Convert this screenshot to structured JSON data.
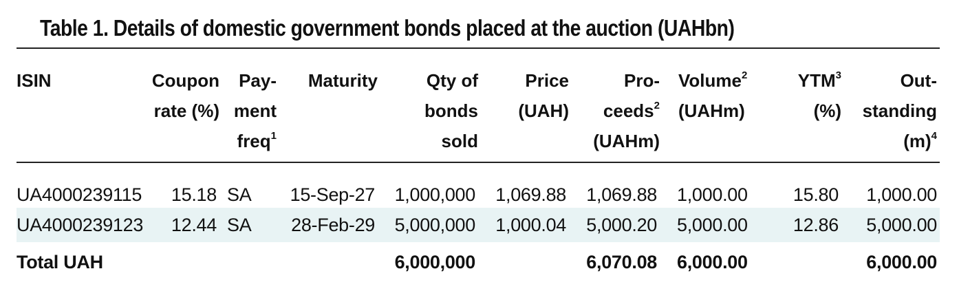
{
  "title": "Table 1. Details of domestic government bonds placed at the auction (UAHbn)",
  "headers": {
    "isin": [
      "ISIN"
    ],
    "coupon": [
      "Coupon",
      "rate (%)"
    ],
    "payment": [
      "Pay-",
      "ment",
      "freq",
      "1"
    ],
    "maturity": [
      "Maturity"
    ],
    "qty": [
      "Qty of",
      "bonds",
      "sold"
    ],
    "price": [
      "Price",
      "(UAH)"
    ],
    "proceeds": [
      "Pro-",
      "ceeds",
      "2",
      "(UAHm)"
    ],
    "volume": [
      "Volume",
      "2",
      "(UAHm)"
    ],
    "ytm": [
      "YTM",
      "3",
      "(%)"
    ],
    "outstanding": [
      "Out-",
      "standing",
      "(m)",
      "4"
    ]
  },
  "rows": [
    {
      "isin": "UA4000239115",
      "coupon": "15.18",
      "payment": "SA",
      "maturity": "15-Sep-27",
      "qty": "1,000,000",
      "price": "1,069.88",
      "proceeds": "1,069.88",
      "volume": "1,000.00",
      "ytm": "15.80",
      "outstanding": "1,000.00"
    },
    {
      "isin": "UA4000239123",
      "coupon": "12.44",
      "payment": "SA",
      "maturity": "28-Feb-29",
      "qty": "5,000,000",
      "price": "1,000.04",
      "proceeds": "5,000.20",
      "volume": "5,000.00",
      "ytm": "12.86",
      "outstanding": "5,000.00"
    }
  ],
  "total": {
    "label": "Total UAH",
    "qty": "6,000,000",
    "proceeds": "6,070.08",
    "volume": "6,000.00",
    "outstanding": "6,000.00"
  },
  "colors": {
    "highlight_row": "#e8f3f4",
    "rule": "#222222"
  }
}
